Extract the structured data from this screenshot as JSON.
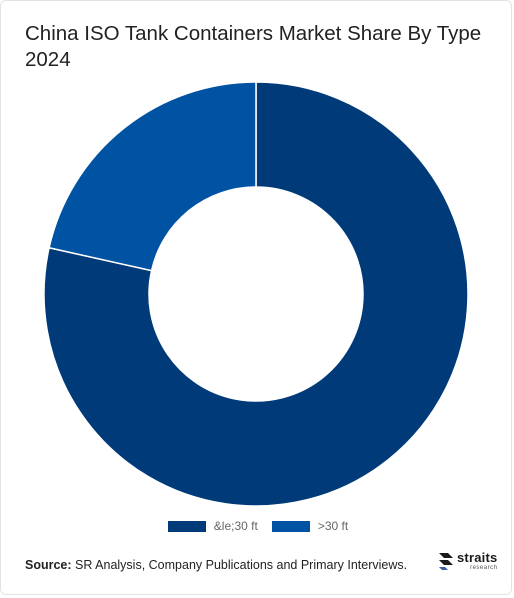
{
  "title": "China ISO Tank Containers Market Share By Type 2024",
  "source": {
    "label": "Source:",
    "text": " SR Analysis, Company Publications and Primary Interviews."
  },
  "logo": {
    "main": "straits",
    "sub": "research",
    "icon": "straits-arrow-logo-icon"
  },
  "chart_data": {
    "type": "pie",
    "donut": true,
    "title": "China ISO Tank Containers Market Share By Type 2024",
    "categories": [
      "&le;30 ft",
      ">30 ft"
    ],
    "values": [
      78.5,
      21.5
    ],
    "colors": [
      "#003a78",
      "#0052a3"
    ],
    "legend_position": "bottom"
  }
}
